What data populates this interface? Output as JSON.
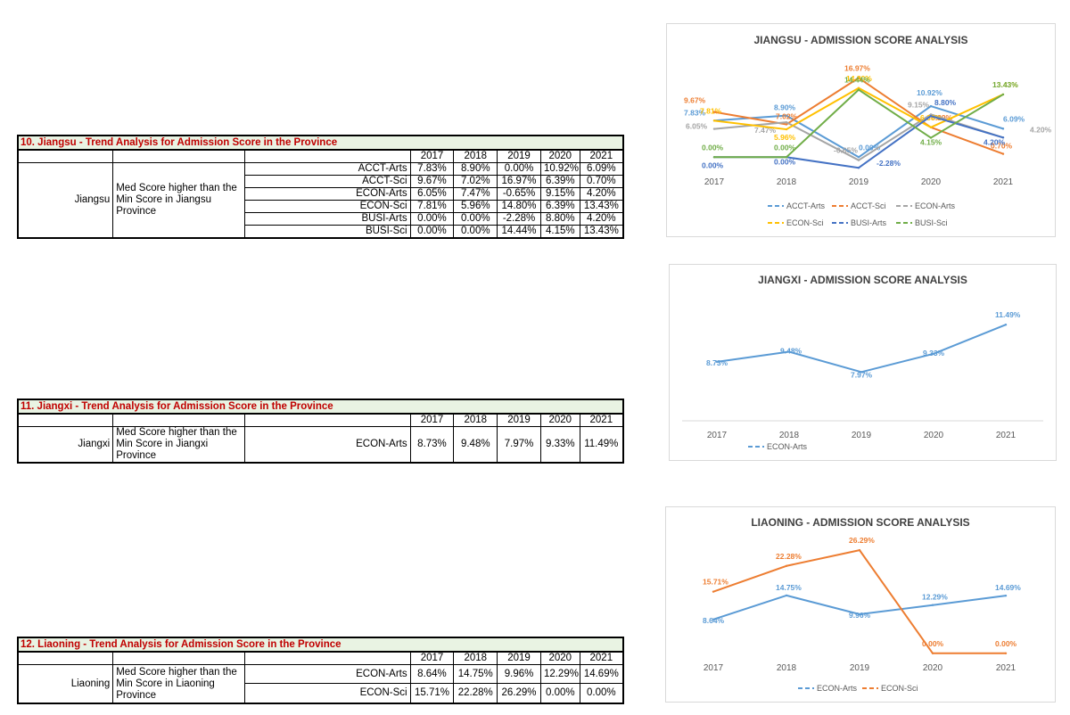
{
  "years": [
    "2017",
    "2018",
    "2019",
    "2020",
    "2021"
  ],
  "colors": {
    "blue": "#5b9bd5",
    "orange": "#ed7d31",
    "gray": "#a5a5a5",
    "yellow": "#ffc000",
    "darkblue": "#4472c4",
    "green": "#70ad47"
  },
  "tables": [
    {
      "title": "10. Jiangsu - Trend Analysis for Admission Score in the Province",
      "province": "Jiangsu",
      "desc": "Med Score higher than the Min Score in Jiangsu Province",
      "rows": [
        {
          "label": "ACCT-Arts",
          "values": [
            "7.83%",
            "8.90%",
            "0.00%",
            "10.92%",
            "6.09%"
          ]
        },
        {
          "label": "ACCT-Sci",
          "values": [
            "9.67%",
            "7.02%",
            "16.97%",
            "6.39%",
            "0.70%"
          ]
        },
        {
          "label": "ECON-Arts",
          "values": [
            "6.05%",
            "7.47%",
            "-0.65%",
            "9.15%",
            "4.20%"
          ]
        },
        {
          "label": "ECON-Sci",
          "values": [
            "7.81%",
            "5.96%",
            "14.80%",
            "6.39%",
            "13.43%"
          ]
        },
        {
          "label": "BUSI-Arts",
          "values": [
            "0.00%",
            "0.00%",
            "-2.28%",
            "8.80%",
            "4.20%"
          ]
        },
        {
          "label": "BUSI-Sci",
          "values": [
            "0.00%",
            "0.00%",
            "14.44%",
            "4.15%",
            "13.43%"
          ]
        }
      ]
    },
    {
      "title": "11. Jiangxi - Trend Analysis for Admission Score in the Province",
      "province": "Jiangxi",
      "desc": "Med Score higher than the Min Score in Jiangxi Province",
      "rows": [
        {
          "label": "ECON-Arts",
          "values": [
            "8.73%",
            "9.48%",
            "7.97%",
            "9.33%",
            "11.49%"
          ]
        }
      ]
    },
    {
      "title": "12. Liaoning - Trend Analysis for Admission Score in the Province",
      "province": "Liaoning",
      "desc": "Med Score higher than the Min Score in Liaoning Province",
      "rows": [
        {
          "label": "ECON-Arts",
          "values": [
            "8.64%",
            "14.75%",
            "9.96%",
            "12.29%",
            "14.69%"
          ]
        },
        {
          "label": "ECON-Sci",
          "values": [
            "15.71%",
            "22.28%",
            "26.29%",
            "0.00%",
            "0.00%"
          ]
        }
      ]
    }
  ],
  "chart_data": [
    {
      "type": "line",
      "title": "JIANGSU - ADMISSION SCORE ANALYSIS",
      "x": [
        "2017",
        "2018",
        "2019",
        "2020",
        "2021"
      ],
      "series": [
        {
          "name": "ACCT-Arts",
          "color": "#5b9bd5",
          "values": [
            7.83,
            8.9,
            0.0,
            10.92,
            6.09
          ]
        },
        {
          "name": "ACCT-Sci",
          "color": "#ed7d31",
          "values": [
            9.67,
            7.02,
            16.97,
            6.39,
            0.7
          ]
        },
        {
          "name": "ECON-Arts",
          "color": "#a5a5a5",
          "values": [
            6.05,
            7.47,
            -0.65,
            9.15,
            4.2
          ]
        },
        {
          "name": "ECON-Sci",
          "color": "#ffc000",
          "values": [
            7.81,
            5.96,
            14.8,
            6.39,
            13.43
          ]
        },
        {
          "name": "BUSI-Arts",
          "color": "#4472c4",
          "values": [
            0.0,
            0.0,
            -2.28,
            8.8,
            4.2
          ]
        },
        {
          "name": "BUSI-Sci",
          "color": "#70ad47",
          "values": [
            0.0,
            0.0,
            14.44,
            4.15,
            13.43
          ]
        }
      ],
      "legend": "bottom",
      "grid": false
    },
    {
      "type": "line",
      "title": "JIANGXI - ADMISSION SCORE ANALYSIS",
      "x": [
        "2017",
        "2018",
        "2019",
        "2020",
        "2021"
      ],
      "series": [
        {
          "name": "ECON-Arts",
          "color": "#5b9bd5",
          "values": [
            8.73,
            9.48,
            7.97,
            9.33,
            11.49
          ]
        }
      ],
      "legend": "bottom",
      "grid": false
    },
    {
      "type": "line",
      "title": "LIAONING - ADMISSION SCORE ANALYSIS",
      "x": [
        "2017",
        "2018",
        "2019",
        "2020",
        "2021"
      ],
      "series": [
        {
          "name": "ECON-Arts",
          "color": "#5b9bd5",
          "values": [
            8.64,
            14.75,
            9.96,
            12.29,
            14.69
          ]
        },
        {
          "name": "ECON-Sci",
          "color": "#ed7d31",
          "values": [
            15.71,
            22.28,
            26.29,
            0.0,
            0.0
          ]
        }
      ],
      "legend": "bottom",
      "grid": false
    }
  ]
}
